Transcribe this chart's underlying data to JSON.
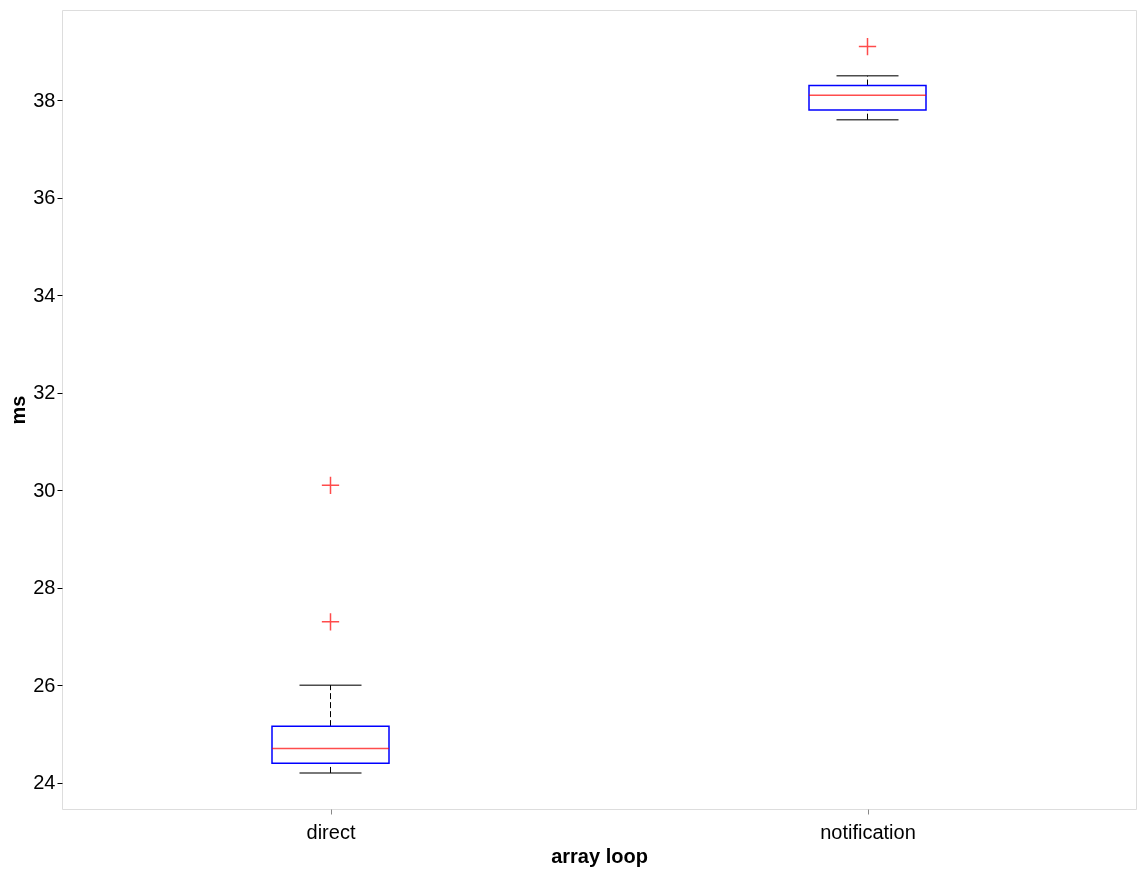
{
  "chart_data": {
    "type": "box",
    "xlabel": "array loop",
    "ylabel": "ms",
    "categories": [
      "direct",
      "notification"
    ],
    "boxes": [
      {
        "low": 24.2,
        "q1": 24.4,
        "median": 24.7,
        "q3": 25.16,
        "high": 26.0,
        "outliers": [
          27.3,
          30.1
        ]
      },
      {
        "low": 37.6,
        "q1": 37.8,
        "median": 38.1,
        "q3": 38.3,
        "high": 38.5,
        "outliers": [
          39.1
        ]
      }
    ],
    "color": "#0000ff",
    "ylim": [
      23.46,
      39.85
    ],
    "yticks": [
      24,
      26,
      28,
      30,
      32,
      34,
      36,
      38
    ],
    "grid": false
  }
}
